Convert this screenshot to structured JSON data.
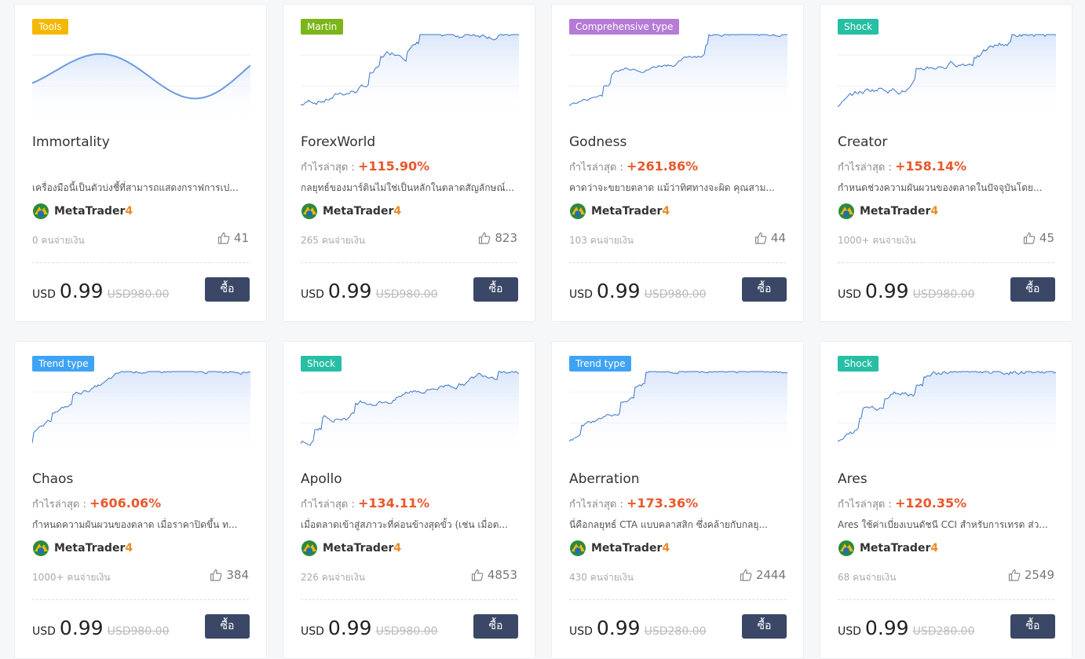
{
  "cards": [
    {
      "tag": "Tools",
      "tag_color": "#f5b800",
      "title": "Immortality",
      "description": "เครื่องมือนี้เป็นตัวบ่งชี้ที่สามารถแสดงกราฟการเป...",
      "platform": "MetaTrader",
      "platform_version": "4",
      "buyers": "0 คนจ่ายเงิน",
      "likes": 41,
      "currency": "USD",
      "price": 0.99,
      "old_price": "USD980.00",
      "button": "ซื้อ"
    },
    {
      "tag": "Martin",
      "tag_color": "#7cb518",
      "title": "ForexWorld",
      "profit_label": "กำไรล่าสุด :",
      "profit": "+115.90%",
      "description": "กลยุทธ์ของมาร์ตินไม่ใช่เป็นหลักในตลาดสัญลักษณ์...",
      "platform": "MetaTrader",
      "platform_version": "4",
      "buyers": "265 คนจ่ายเงิน",
      "likes": 823,
      "currency": "USD",
      "price": 0.99,
      "old_price": "USD980.00",
      "button": "ซื้อ"
    },
    {
      "tag": "Comprehensive type",
      "tag_color": "#b57bd6",
      "title": "Godness",
      "profit_label": "กำไรล่าสุด :",
      "profit": "+261.86%",
      "description": "คาดว่าจะขยายตลาด แม้ว่าทิศทางจะผิด คุณสาม...",
      "platform": "MetaTrader",
      "platform_version": "4",
      "buyers": "103 คนจ่ายเงิน",
      "likes": 44,
      "currency": "USD",
      "price": 0.99,
      "old_price": "USD980.00",
      "button": "ซื้อ"
    },
    {
      "tag": "Shock",
      "tag_color": "#26bfa3",
      "title": "Creator",
      "profit_label": "กำไรล่าสุด :",
      "profit": "+158.14%",
      "description": "กำหนดช่วงความผันผวนของตลาดในปัจจุบันโดย...",
      "platform": "MetaTrader",
      "platform_version": "4",
      "buyers": "1000+ คนจ่ายเงิน",
      "likes": 45,
      "currency": "USD",
      "price": 0.99,
      "old_price": "USD980.00",
      "button": "ซื้อ"
    },
    {
      "tag": "Trend type",
      "tag_color": "#3fa3f5",
      "title": "Chaos",
      "profit_label": "กำไรล่าสุด :",
      "profit": "+606.06%",
      "description": "กำหนดความผันผวนของตลาด เมื่อราคาปิดขึ้น ท...",
      "platform": "MetaTrader",
      "platform_version": "4",
      "buyers": "1000+ คนจ่ายเงิน",
      "likes": 384,
      "currency": "USD",
      "price": 0.99,
      "old_price": "USD980.00",
      "button": "ซื้อ"
    },
    {
      "tag": "Shock",
      "tag_color": "#26bfa3",
      "title": "Apollo",
      "profit_label": "กำไรล่าสุด :",
      "profit": "+134.11%",
      "description": "เมื่อตลาดเข้าสู่สภาวะที่ค่อนข้างสุดขั้ว (เช่น เมื่อต...",
      "platform": "MetaTrader",
      "platform_version": "4",
      "buyers": "226 คนจ่ายเงิน",
      "likes": 4853,
      "currency": "USD",
      "price": 0.99,
      "old_price": "USD980.00",
      "button": "ซื้อ"
    },
    {
      "tag": "Trend type",
      "tag_color": "#3fa3f5",
      "title": "Aberration",
      "profit_label": "กำไรล่าสุด :",
      "profit": "+173.36%",
      "description": "นี่คือกลยุทธ์ CTA แบบคลาสสิก ซึ่งคล้ายกับกลยุ...",
      "platform": "MetaTrader",
      "platform_version": "4",
      "buyers": "430 คนจ่ายเงิน",
      "likes": 2444,
      "currency": "USD",
      "price": 0.99,
      "old_price": "USD280.00",
      "button": "ซื้อ"
    },
    {
      "tag": "Shock",
      "tag_color": "#26bfa3",
      "title": "Ares",
      "profit_label": "กำไรล่าสุด :",
      "profit": "+120.35%",
      "description": "Ares ใช้ค่าเบี่ยงเบนดัชนี CCI สำหรับการเทรด ส่ว...",
      "platform": "MetaTrader",
      "platform_version": "4",
      "buyers": "68 คนจ่ายเงิน",
      "likes": 2549,
      "currency": "USD",
      "price": 0.99,
      "old_price": "USD280.00",
      "button": "ซื้อ"
    }
  ]
}
